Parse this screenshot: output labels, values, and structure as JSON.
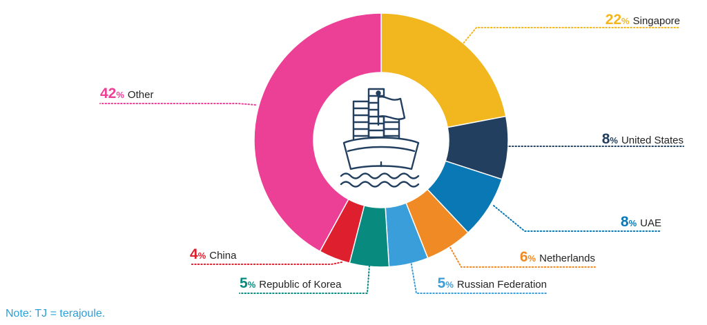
{
  "chart_data": {
    "type": "pie",
    "donut": true,
    "title": "",
    "unit_suffix": "%",
    "slices": [
      {
        "label": "Singapore",
        "value": 22,
        "color": "#f2b61e"
      },
      {
        "label": "United States",
        "value": 8,
        "color": "#223f5f"
      },
      {
        "label": "UAE",
        "value": 8,
        "color": "#0a78b4"
      },
      {
        "label": "Netherlands",
        "value": 6,
        "color": "#f08a24"
      },
      {
        "label": "Russian Federation",
        "value": 5,
        "color": "#3a9edb"
      },
      {
        "label": "Republic of Korea",
        "value": 5,
        "color": "#088a7e"
      },
      {
        "label": "China",
        "value": 4,
        "color": "#de1f2e"
      },
      {
        "label": "Other",
        "value": 42,
        "color": "#ec3f96"
      }
    ],
    "center_icon": "container-ship-icon"
  },
  "note": "Note: TJ = terajoule."
}
